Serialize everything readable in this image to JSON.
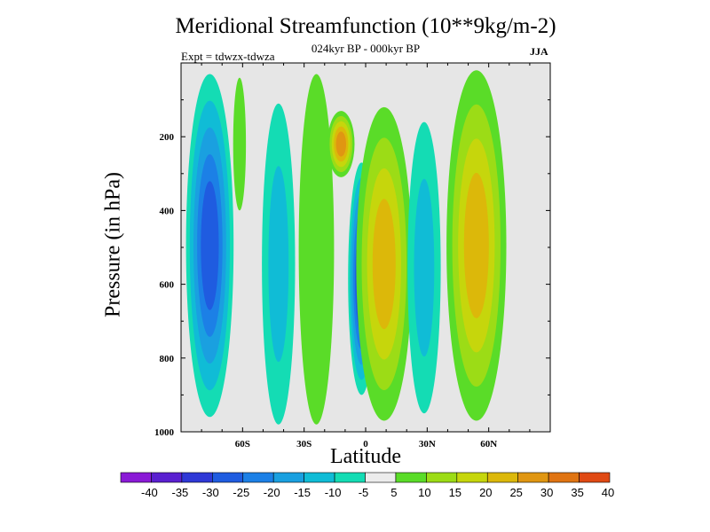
{
  "chart_data": {
    "type": "contour",
    "title": "Meridional Streamfunction (10**9kg/m-2)",
    "subtitle": "024kyr BP - 000kyr BP",
    "experiment_label": "Expt = tdwzx-tdwza",
    "season": "JJA",
    "xlabel": "Latitude",
    "ylabel": "Pressure (in hPa)",
    "xlim": [
      -90,
      90
    ],
    "ylim": [
      1000,
      0
    ],
    "y_axis_inverted": true,
    "xticks": [
      {
        "value": -60,
        "label": "60S"
      },
      {
        "value": -30,
        "label": "30S"
      },
      {
        "value": 0,
        "label": "0"
      },
      {
        "value": 30,
        "label": "30N"
      },
      {
        "value": 60,
        "label": "60N"
      }
    ],
    "yticks": [
      {
        "value": 200,
        "label": "200"
      },
      {
        "value": 400,
        "label": "400"
      },
      {
        "value": 600,
        "label": "600"
      },
      {
        "value": 800,
        "label": "800"
      },
      {
        "value": 1000,
        "label": "1000"
      }
    ],
    "background_color": "#e6e6e6",
    "contour_levels": [
      -40,
      -35,
      -30,
      -25,
      -20,
      -15,
      -10,
      -5,
      5,
      10,
      15,
      20,
      25,
      30,
      35,
      40
    ],
    "colorbar": {
      "colors": [
        "#8a1ad6",
        "#5a20d0",
        "#2f38d6",
        "#1f5ce0",
        "#1c80e6",
        "#1aa0e0",
        "#10bcd6",
        "#14dcb4",
        "#ececec",
        "#5adc28",
        "#9cdc16",
        "#c6d60c",
        "#dcb80a",
        "#e09612",
        "#e07412",
        "#e04a14"
      ],
      "labels": [
        "-40",
        "-35",
        "-30",
        "-25",
        "-20",
        "-15",
        "-10",
        "-5",
        "5",
        "10",
        "15",
        "20",
        "25",
        "30",
        "35",
        "40"
      ]
    },
    "features": [
      {
        "lat_range": [
          -85,
          -67
        ],
        "p_range": [
          30,
          960
        ],
        "peak": -25,
        "sign": "negative"
      },
      {
        "lat_range": [
          -62,
          -61
        ],
        "p_range": [
          40,
          400
        ],
        "peak": 5,
        "sign": "positive"
      },
      {
        "lat_range": [
          -48,
          -37
        ],
        "p_range": [
          110,
          980
        ],
        "peak": -10,
        "sign": "negative"
      },
      {
        "lat_range": [
          -30,
          -18
        ],
        "p_range": [
          30,
          980
        ],
        "peak": 5,
        "sign": "positive"
      },
      {
        "lat_range": [
          -16,
          -8
        ],
        "p_range": [
          130,
          310
        ],
        "peak": 25,
        "sign": "positive"
      },
      {
        "lat_range": [
          -6,
          2
        ],
        "p_range": [
          270,
          900
        ],
        "peak": -30,
        "sign": "negative"
      },
      {
        "lat_range": [
          -2,
          20
        ],
        "p_range": [
          120,
          970
        ],
        "peak": 20,
        "sign": "positive"
      },
      {
        "lat_range": [
          23,
          34
        ],
        "p_range": [
          160,
          950
        ],
        "peak": -10,
        "sign": "negative"
      },
      {
        "lat_range": [
          42,
          66
        ],
        "p_range": [
          20,
          970
        ],
        "peak": 20,
        "sign": "positive"
      }
    ]
  }
}
